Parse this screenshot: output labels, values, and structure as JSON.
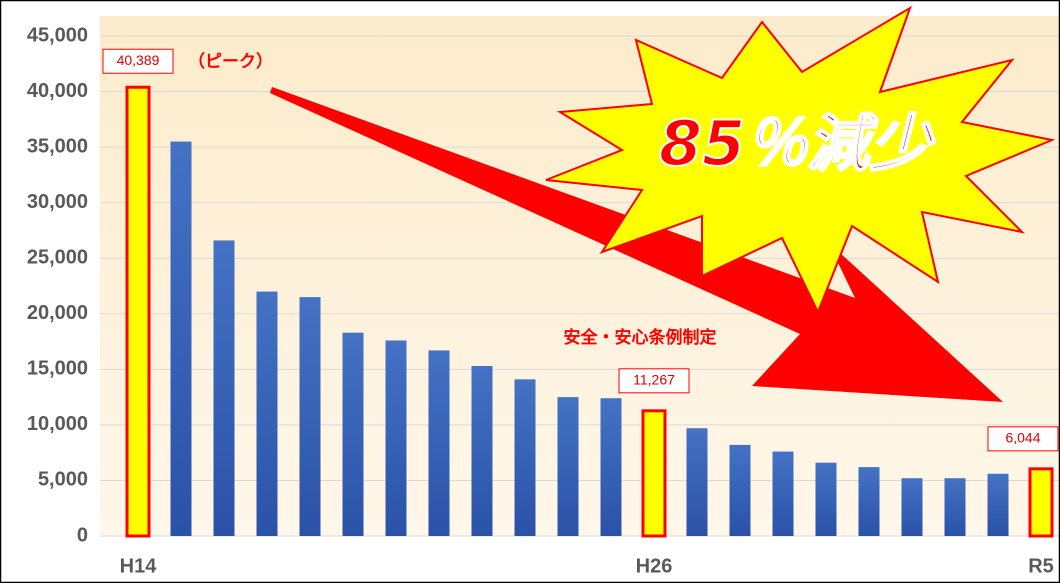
{
  "chart_data": {
    "type": "bar",
    "categories": [
      "H14",
      null,
      null,
      null,
      null,
      null,
      null,
      null,
      null,
      null,
      null,
      null,
      "H26",
      null,
      null,
      null,
      null,
      null,
      null,
      null,
      null,
      "R5"
    ],
    "values": [
      40389,
      35500,
      26600,
      22000,
      21500,
      18300,
      17600,
      16700,
      15300,
      14100,
      12500,
      12400,
      11267,
      9700,
      8200,
      7600,
      6600,
      6200,
      5200,
      5200,
      5600,
      6044
    ],
    "value_labels": [
      "40,389",
      null,
      null,
      null,
      null,
      null,
      null,
      null,
      null,
      null,
      null,
      null,
      "11,267",
      null,
      null,
      null,
      null,
      null,
      null,
      null,
      null,
      "6,044"
    ],
    "color": "#4472c4",
    "highlight": {
      "fill": "#ffff00",
      "stroke": "#ff0000",
      "indices": [
        0,
        12,
        21
      ]
    },
    "annotations": [
      "（ピーク）",
      "安全・安心条例制定",
      "85％減少"
    ],
    "ylim": [
      0,
      45000
    ],
    "yticks": [
      0,
      {
        "value": 5000,
        "label": "5,000"
      },
      {
        "value": 10000,
        "label": "10,000"
      },
      {
        "value": 15000,
        "label": "15,000"
      },
      {
        "value": 20000,
        "label": "20,000"
      },
      {
        "value": 25000,
        "label": "25,000"
      },
      {
        "value": 30000,
        "label": "30,000"
      },
      {
        "value": 35000,
        "label": "35,000"
      },
      {
        "value": 40000,
        "label": "40,000"
      },
      {
        "value": 45000,
        "label": "45,000"
      }
    ],
    "grid": true
  }
}
